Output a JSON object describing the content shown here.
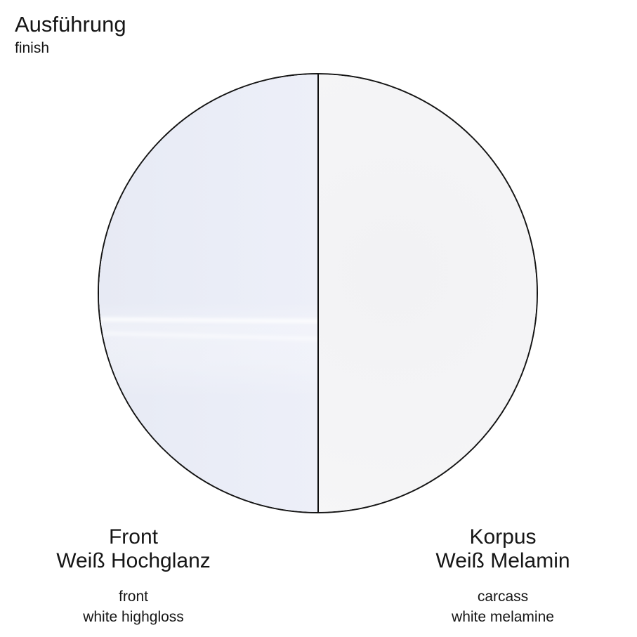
{
  "header": {
    "title": "Ausführung",
    "subtitle": "finish"
  },
  "swatch_circle": {
    "front_half_color": "#e9ecf6",
    "carcass_half_color": "#f4f4f6",
    "outline_color": "#141414",
    "divider_color": "#0f0f0f"
  },
  "labels": {
    "front": {
      "de_line1": "Front",
      "de_line2": "Weiß Hochglanz",
      "en_line1": "front",
      "en_line2": "white highgloss"
    },
    "carcass": {
      "de_line1": "Korpus",
      "de_line2": "Weiß Melamin",
      "en_line1": "carcass",
      "en_line2": "white melamine"
    }
  }
}
